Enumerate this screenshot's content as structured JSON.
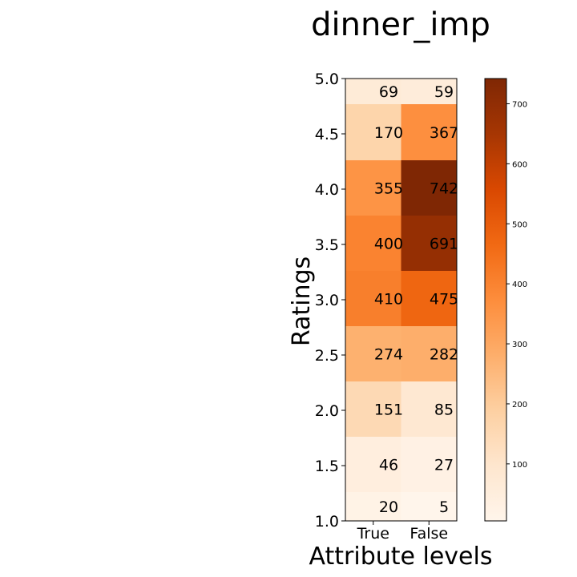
{
  "chart_data": {
    "type": "heatmap",
    "title": "dinner_imp",
    "xlabel": "Attribute levels",
    "ylabel": "Ratings",
    "x_categories": [
      "True",
      "False"
    ],
    "y_categories": [
      "1.0",
      "1.5",
      "2.0",
      "2.5",
      "3.0",
      "3.5",
      "4.0",
      "4.5",
      "5.0"
    ],
    "y_tick_labels": [
      "1.0",
      "1.5",
      "2.0",
      "2.5",
      "3.0",
      "3.5",
      "4.0",
      "4.5",
      "5.0"
    ],
    "values": [
      [
        20,
        5
      ],
      [
        46,
        27
      ],
      [
        151,
        85
      ],
      [
        274,
        282
      ],
      [
        410,
        475
      ],
      [
        400,
        691
      ],
      [
        355,
        742
      ],
      [
        170,
        367
      ],
      [
        69,
        59
      ]
    ],
    "colormap": "Oranges",
    "vmin": 5,
    "vmax": 742,
    "colorbar_ticks": [
      100,
      200,
      300,
      400,
      500,
      600,
      700
    ],
    "grid": false
  }
}
